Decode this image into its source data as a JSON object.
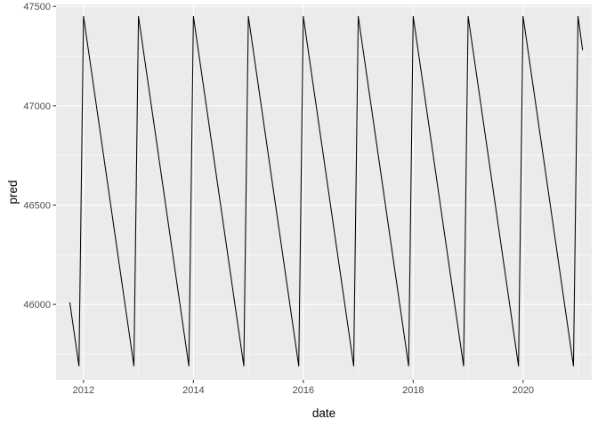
{
  "chart_data": {
    "type": "line",
    "title": "",
    "xlabel": "date",
    "ylabel": "pred",
    "x_ticks": [
      "2012",
      "2014",
      "2016",
      "2018",
      "2020"
    ],
    "y_ticks": [
      "46000",
      "46500",
      "47000",
      "47500"
    ],
    "xlim": [
      "2011-07-01",
      "2021-04-01"
    ],
    "ylim": [
      45620,
      47510
    ],
    "grid": true,
    "background": "#ebebeb",
    "grid_major_color": "#ffffff",
    "line_color": "#000000",
    "series": [
      {
        "x": [
          "2011-10-01",
          "2011-11-01",
          "2011-12-01",
          "2012-01-01",
          "2012-12-01",
          "2013-01-01",
          "2013-12-01",
          "2014-01-01",
          "2014-12-01",
          "2015-01-01",
          "2015-12-01",
          "2016-01-01",
          "2016-12-01",
          "2017-01-01",
          "2017-12-01",
          "2018-01-01",
          "2018-12-01",
          "2019-01-01",
          "2019-12-01",
          "2020-01-01",
          "2020-12-01",
          "2021-01-01",
          "2021-02-01"
        ],
        "y": [
          46010,
          45850,
          45690,
          47450,
          45690,
          47450,
          45690,
          47450,
          45690,
          47450,
          45690,
          47450,
          45690,
          47450,
          45690,
          47450,
          45690,
          47450,
          45690,
          47450,
          45690,
          47450,
          47280
        ]
      }
    ]
  }
}
